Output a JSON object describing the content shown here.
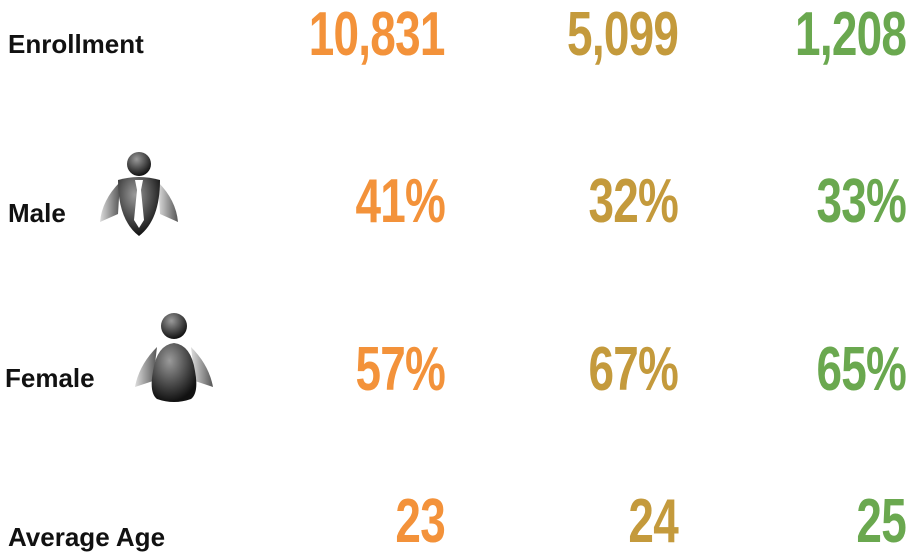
{
  "table": {
    "rows": [
      {
        "label": "Enrollment",
        "values": [
          "10,831",
          "5,099",
          "1,208"
        ]
      },
      {
        "label": "Male",
        "values": [
          "41%",
          "32%",
          "33%"
        ]
      },
      {
        "label": "Female",
        "values": [
          "57%",
          "67%",
          "65%"
        ]
      },
      {
        "label": "Average Age",
        "values": [
          "23",
          "24",
          "25"
        ]
      }
    ]
  }
}
